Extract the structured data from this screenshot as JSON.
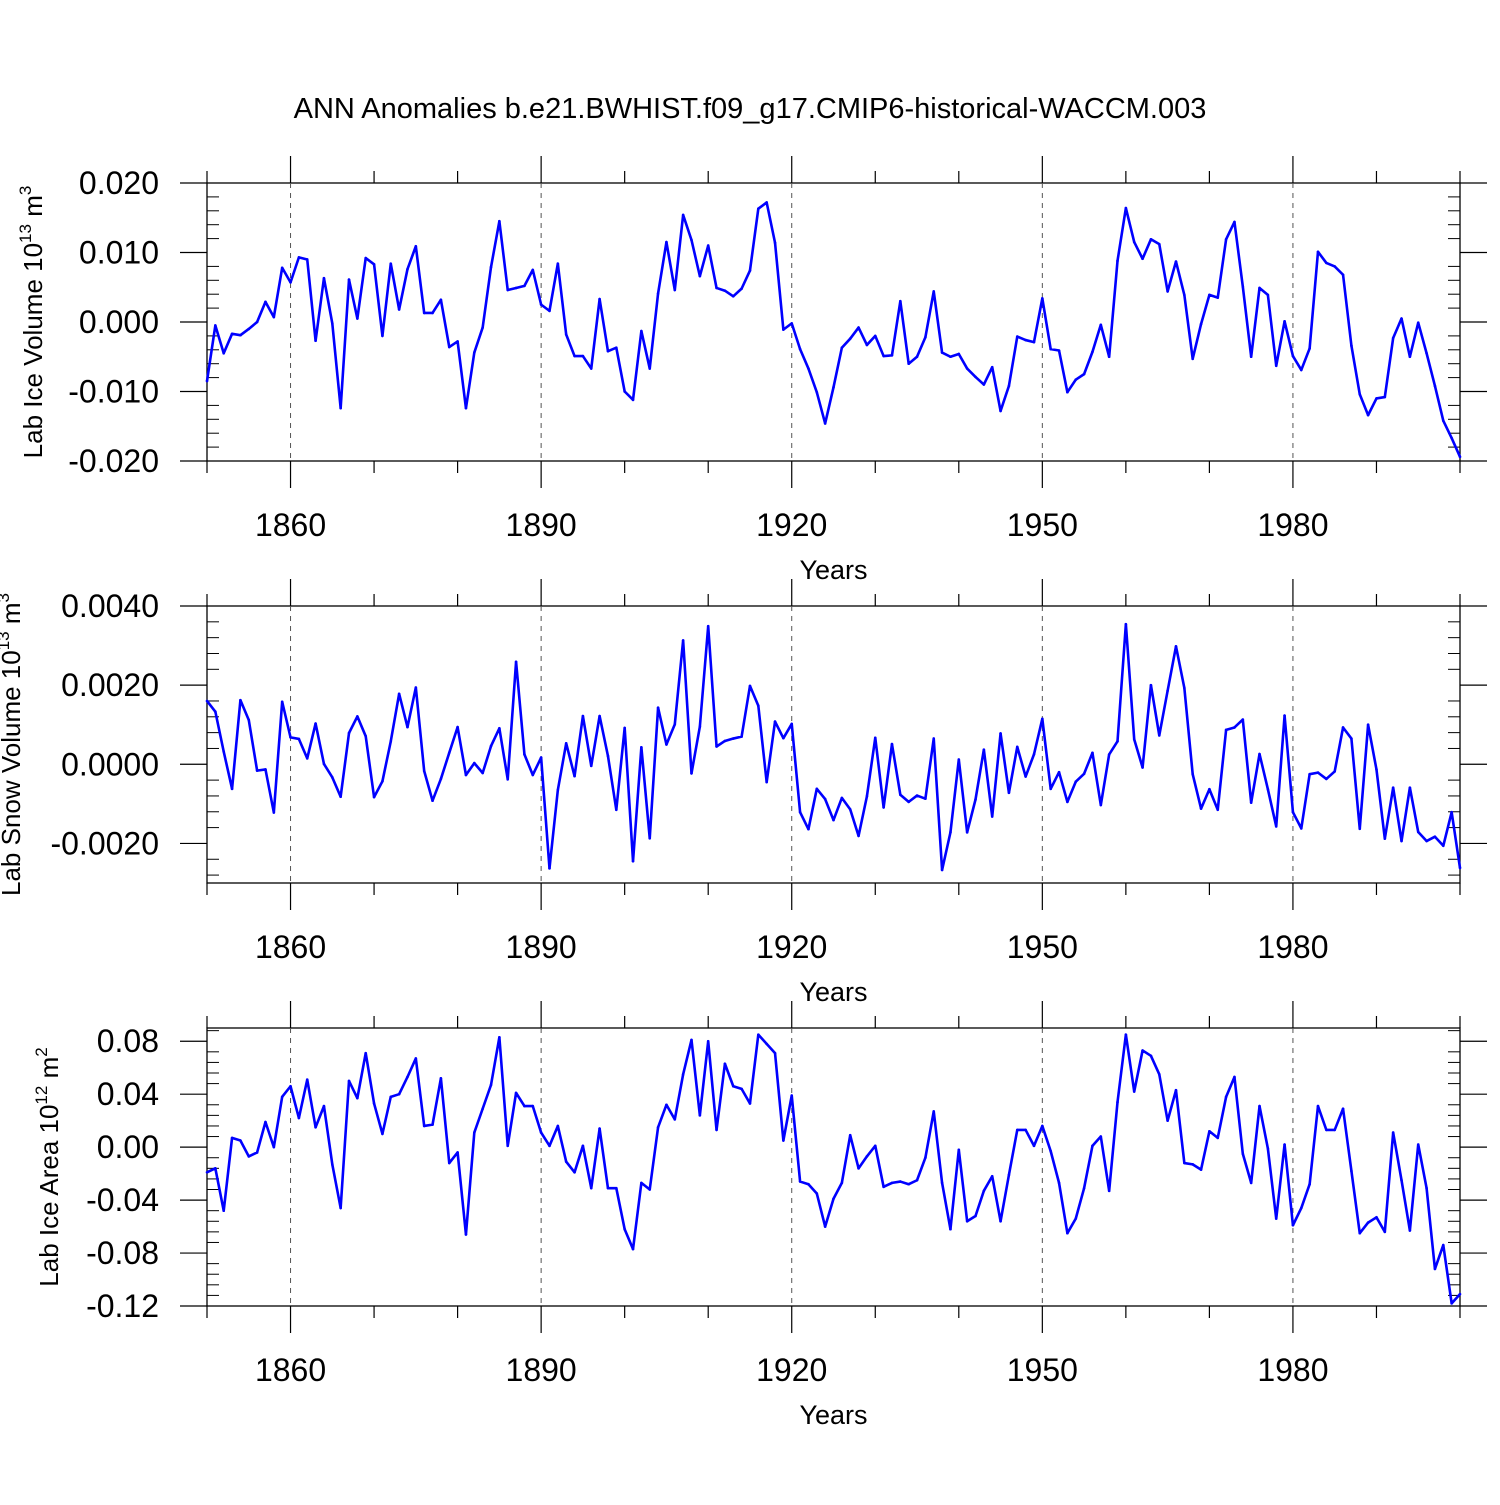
{
  "title": "ANN Anomalies b.e21.BWHIST.f09_g17.CMIP6-historical-WACCM.003",
  "line_color": "#0000ff",
  "chart_data": [
    {
      "type": "line",
      "name": "ice-volume",
      "xlabel": "Years",
      "ylabel_main": "Lab Ice Volume 10",
      "ylabel_sup": "13",
      "ylabel_unit": " m",
      "ylabel_unit_sup": "3",
      "xlim": [
        1850,
        2000
      ],
      "ylim": [
        -0.02,
        0.02
      ],
      "yticks": [
        -0.02,
        -0.01,
        0.0,
        0.01,
        0.02
      ],
      "ytick_labels": [
        "-0.020",
        "-0.010",
        "0.000",
        "0.010",
        "0.020"
      ],
      "xticks": [
        1860,
        1890,
        1920,
        1950,
        1980
      ],
      "xtick_labels": [
        "1860",
        "1890",
        "1920",
        "1950",
        "1980"
      ],
      "x_start": 1850,
      "values": [
        -0.0085,
        -0.0005,
        -0.0045,
        -0.0017,
        -0.0019,
        -0.001,
        0.0,
        0.0029,
        0.0007,
        0.0078,
        0.0057,
        0.0093,
        0.009,
        -0.0027,
        0.0063,
        -0.0002,
        -0.0124,
        0.0061,
        0.0005,
        0.0092,
        0.0083,
        -0.002,
        0.0084,
        0.0018,
        0.0076,
        0.0109,
        0.0013,
        0.0013,
        0.0032,
        -0.0036,
        -0.0028,
        -0.0124,
        -0.0044,
        -0.0008,
        0.0079,
        0.0145,
        0.0046,
        0.0049,
        0.0052,
        0.0075,
        0.0025,
        0.0016,
        0.0084,
        -0.0018,
        -0.0049,
        -0.0049,
        -0.0067,
        0.0033,
        -0.0042,
        -0.0037,
        -0.01,
        -0.0112,
        -0.0013,
        -0.0067,
        0.0041,
        0.0115,
        0.0046,
        0.0154,
        0.0118,
        0.0066,
        0.011,
        0.0049,
        0.0045,
        0.0037,
        0.0048,
        0.0074,
        0.0163,
        0.0172,
        0.0114,
        -0.0011,
        -0.0002,
        -0.0039,
        -0.0067,
        -0.0101,
        -0.0146,
        -0.0094,
        -0.0037,
        -0.0024,
        -0.0008,
        -0.0033,
        -0.002,
        -0.0049,
        -0.0048,
        0.003,
        -0.006,
        -0.005,
        -0.0022,
        0.0044,
        -0.0044,
        -0.005,
        -0.0046,
        -0.0067,
        -0.0079,
        -0.009,
        -0.0065,
        -0.0128,
        -0.0092,
        -0.0021,
        -0.0026,
        -0.0029,
        0.0034,
        -0.0039,
        -0.0041,
        -0.0101,
        -0.0083,
        -0.0075,
        -0.0043,
        -0.0004,
        -0.005,
        0.0088,
        0.0164,
        0.0115,
        0.0091,
        0.0119,
        0.0112,
        0.0044,
        0.0087,
        0.0039,
        -0.0053,
        -0.0003,
        0.0039,
        0.0035,
        0.0119,
        0.0144,
        0.0051,
        -0.005,
        0.0049,
        0.0039,
        -0.0063,
        0.0001,
        -0.0049,
        -0.0069,
        -0.0038,
        0.0101,
        0.0085,
        0.008,
        0.0068,
        -0.0034,
        -0.0104,
        -0.0134,
        -0.011,
        -0.0108,
        -0.0023,
        0.0005,
        -0.005,
        -0.0001,
        -0.0045,
        -0.0092,
        -0.0142,
        -0.0167,
        -0.0194
      ]
    },
    {
      "type": "line",
      "name": "snow-volume",
      "xlabel": "Years",
      "ylabel_main": "Lab Snow Volume 10",
      "ylabel_sup": "13",
      "ylabel_unit": " m",
      "ylabel_unit_sup": "3",
      "xlim": [
        1850,
        2000
      ],
      "ylim": [
        -0.003,
        0.004
      ],
      "yticks": [
        -0.002,
        0.0,
        0.002,
        0.004
      ],
      "ytick_labels": [
        "-0.0020",
        "0.0000",
        "0.0020",
        "0.0040"
      ],
      "xticks": [
        1860,
        1890,
        1920,
        1950,
        1980
      ],
      "xtick_labels": [
        "1860",
        "1890",
        "1920",
        "1950",
        "1980"
      ],
      "x_start": 1850,
      "values": [
        0.0016,
        0.00133,
        0.00032,
        -0.00062,
        0.00162,
        0.00112,
        -0.00016,
        -0.00013,
        -0.00122,
        0.00158,
        0.00068,
        0.00064,
        0.00015,
        0.00103,
        1e-05,
        -0.00033,
        -0.00082,
        0.00079,
        0.00121,
        0.00071,
        -0.00083,
        -0.00043,
        0.00058,
        0.00178,
        0.00094,
        0.00194,
        -0.00017,
        -0.00092,
        -0.00037,
        0.00029,
        0.00094,
        -0.00027,
        3e-05,
        -0.00022,
        0.00046,
        0.00091,
        -0.00038,
        0.00259,
        0.00025,
        -0.00027,
        0.00017,
        -0.00263,
        -0.00065,
        0.00053,
        -0.0003,
        0.00122,
        -4e-05,
        0.00122,
        0.00021,
        -0.00115,
        0.00092,
        -0.00245,
        0.00043,
        -0.00187,
        0.00143,
        0.0005,
        0.00101,
        0.00313,
        -0.00023,
        0.00095,
        0.00349,
        0.00045,
        0.00059,
        0.00065,
        0.0007,
        0.00198,
        0.00148,
        -0.00045,
        0.00108,
        0.00066,
        0.00102,
        -0.00121,
        -0.00164,
        -0.00062,
        -0.00088,
        -0.00141,
        -0.00085,
        -0.00114,
        -0.00181,
        -0.00081,
        0.00067,
        -0.00109,
        0.00051,
        -0.00077,
        -0.00095,
        -0.00079,
        -0.00087,
        0.00065,
        -0.00267,
        -0.00172,
        0.00012,
        -0.00172,
        -0.00089,
        0.00037,
        -0.00132,
        0.00078,
        -0.00072,
        0.00044,
        -0.00031,
        0.00025,
        0.00115,
        -0.00062,
        -0.0002,
        -0.00095,
        -0.00044,
        -0.00024,
        0.00029,
        -0.00103,
        0.00025,
        0.00058,
        0.00354,
        0.00063,
        -8e-05,
        0.002,
        0.00073,
        0.00186,
        0.00298,
        0.00193,
        -0.00025,
        -0.00112,
        -0.00063,
        -0.00115,
        0.00087,
        0.00093,
        0.00113,
        -0.00097,
        0.00026,
        -0.00063,
        -0.00157,
        0.00123,
        -0.00121,
        -0.00162,
        -0.00025,
        -0.00021,
        -0.00037,
        -0.00018,
        0.00093,
        0.00065,
        -0.00163,
        0.001,
        -0.00013,
        -0.00188,
        -0.00059,
        -0.00194,
        -0.00059,
        -0.00171,
        -0.00194,
        -0.00183,
        -0.00206,
        -0.00121,
        -0.00262
      ]
    },
    {
      "type": "line",
      "name": "ice-area",
      "xlabel": "Years",
      "ylabel_main": "Lab Ice Area 10",
      "ylabel_sup": "12",
      "ylabel_unit": " m",
      "ylabel_unit_sup": "2",
      "xlim": [
        1850,
        2000
      ],
      "ylim": [
        -0.12,
        0.09
      ],
      "yticks": [
        -0.12,
        -0.08,
        -0.04,
        0.0,
        0.04,
        0.08
      ],
      "ytick_labels": [
        "-0.12",
        "-0.08",
        "-0.04",
        "0.00",
        "0.04",
        "0.08"
      ],
      "xticks": [
        1860,
        1890,
        1920,
        1950,
        1980
      ],
      "xtick_labels": [
        "1860",
        "1890",
        "1920",
        "1950",
        "1980"
      ],
      "x_start": 1850,
      "values": [
        -0.019,
        -0.016,
        -0.048,
        0.007,
        0.005,
        -0.007,
        -0.004,
        0.019,
        0.0,
        0.038,
        0.046,
        0.022,
        0.051,
        0.015,
        0.031,
        -0.013,
        -0.046,
        0.05,
        0.037,
        0.071,
        0.033,
        0.01,
        0.038,
        0.04,
        0.053,
        0.067,
        0.016,
        0.017,
        0.052,
        -0.012,
        -0.004,
        -0.066,
        0.011,
        0.029,
        0.047,
        0.083,
        0.001,
        0.041,
        0.031,
        0.031,
        0.011,
        0.001,
        0.016,
        -0.011,
        -0.019,
        0.001,
        -0.031,
        0.014,
        -0.031,
        -0.031,
        -0.062,
        -0.077,
        -0.027,
        -0.032,
        0.015,
        0.032,
        0.021,
        0.055,
        0.081,
        0.024,
        0.08,
        0.013,
        0.063,
        0.046,
        0.044,
        0.033,
        0.085,
        0.078,
        0.071,
        0.005,
        0.039,
        -0.026,
        -0.028,
        -0.035,
        -0.06,
        -0.039,
        -0.027,
        0.009,
        -0.016,
        -0.007,
        0.001,
        -0.03,
        -0.027,
        -0.026,
        -0.028,
        -0.025,
        -0.008,
        0.027,
        -0.027,
        -0.062,
        -0.002,
        -0.056,
        -0.052,
        -0.033,
        -0.022,
        -0.056,
        -0.021,
        0.013,
        0.013,
        0.001,
        0.016,
        -0.003,
        -0.027,
        -0.065,
        -0.054,
        -0.031,
        0.001,
        0.008,
        -0.033,
        0.034,
        0.085,
        0.042,
        0.073,
        0.069,
        0.055,
        0.02,
        0.043,
        -0.012,
        -0.013,
        -0.017,
        0.012,
        0.007,
        0.038,
        0.053,
        -0.005,
        -0.027,
        0.031,
        -0.001,
        -0.054,
        0.002,
        -0.059,
        -0.046,
        -0.028,
        0.031,
        0.013,
        0.013,
        0.029,
        -0.018,
        -0.065,
        -0.057,
        -0.053,
        -0.064,
        0.011,
        -0.025,
        -0.063,
        0.002,
        -0.031,
        -0.092,
        -0.074,
        -0.118,
        -0.111
      ]
    }
  ]
}
